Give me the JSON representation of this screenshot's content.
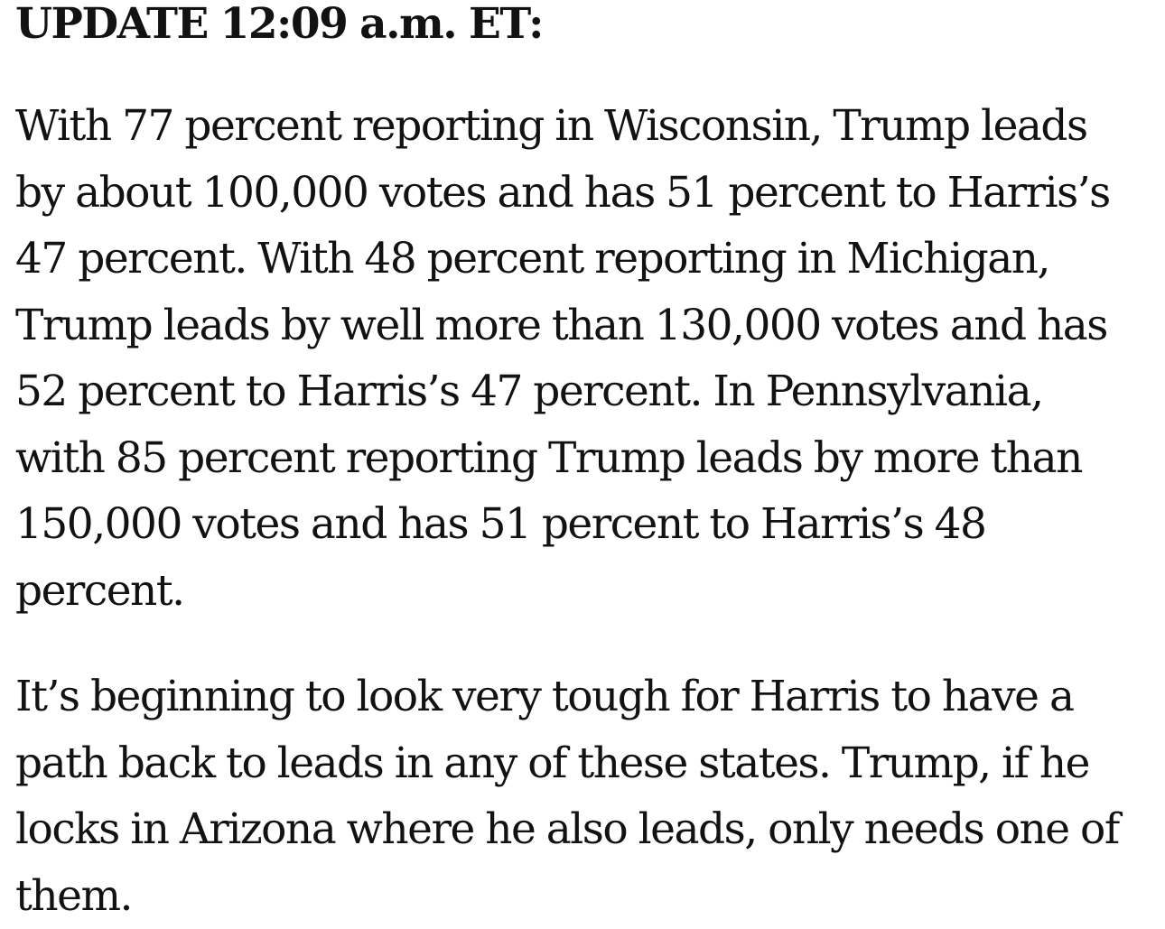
{
  "update": {
    "heading": "UPDATE 12:09 a.m. ET:"
  },
  "body": {
    "paragraph_1": {
      "lines": [
        "With 77 percent reporting in Wisconsin, Trump leads",
        "by about 100,000 votes and has 51 percent to Harris’s",
        "47 percent. With 48 percent reporting in Michigan,",
        "Trump leads by well more than 130,000 votes and has",
        "52 percent to Harris’s 47 percent. In Pennsylvania,",
        "with 85 percent reporting Trump leads by more than",
        "150,000 votes and has 51 percent to Harris’s 48",
        "percent."
      ]
    },
    "paragraph_2": {
      "lines": [
        "It’s beginning to look very tough for Harris to have a",
        "path back to leads in any of these states. Trump, if he",
        "locks in Arizona where he also leads, only needs one of",
        "them."
      ]
    }
  }
}
